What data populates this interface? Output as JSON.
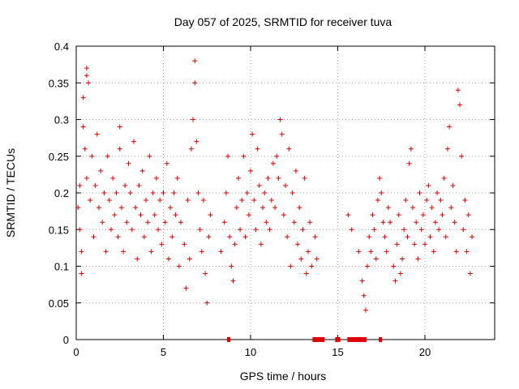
{
  "chart_data": {
    "type": "scatter",
    "title": "Day 057 of 2025, SRMTID for receiver tuva",
    "xlabel": "GPS time / hours",
    "ylabel": "SRMTID / TECUs",
    "xlim": [
      0,
      24
    ],
    "ylim": [
      0,
      0.4
    ],
    "xticks": [
      0,
      5,
      10,
      15,
      20
    ],
    "yticks": [
      0,
      0.05,
      0.1,
      0.15,
      0.2,
      0.25,
      0.3,
      0.35,
      0.4
    ],
    "xtick_labels": [
      "0",
      "5",
      "10",
      "15",
      "20"
    ],
    "ytick_labels": [
      "0",
      "0.05",
      "0.1",
      "0.15",
      "0.2",
      "0.25",
      "0.3",
      "0.35",
      "0.4"
    ],
    "grid": true,
    "marker": "+",
    "color": "#e00000",
    "series": [
      {
        "name": "SRMTID",
        "points": [
          [
            0.1,
            0.18
          ],
          [
            0.2,
            0.15
          ],
          [
            0.2,
            0.21
          ],
          [
            0.3,
            0.12
          ],
          [
            0.3,
            0.09
          ],
          [
            0.4,
            0.29
          ],
          [
            0.4,
            0.33
          ],
          [
            0.5,
            0.26
          ],
          [
            0.6,
            0.36
          ],
          [
            0.6,
            0.37
          ],
          [
            0.7,
            0.35
          ],
          [
            0.6,
            0.22
          ],
          [
            0.8,
            0.19
          ],
          [
            0.9,
            0.25
          ],
          [
            1.0,
            0.14
          ],
          [
            1.1,
            0.21
          ],
          [
            1.2,
            0.28
          ],
          [
            1.3,
            0.18
          ],
          [
            1.4,
            0.23
          ],
          [
            1.5,
            0.16
          ],
          [
            1.6,
            0.2
          ],
          [
            1.7,
            0.12
          ],
          [
            1.8,
            0.25
          ],
          [
            1.9,
            0.19
          ],
          [
            2.0,
            0.15
          ],
          [
            2.1,
            0.22
          ],
          [
            2.2,
            0.17
          ],
          [
            2.3,
            0.2
          ],
          [
            2.4,
            0.14
          ],
          [
            2.5,
            0.26
          ],
          [
            2.5,
            0.29
          ],
          [
            2.6,
            0.18
          ],
          [
            2.7,
            0.12
          ],
          [
            2.8,
            0.21
          ],
          [
            2.9,
            0.16
          ],
          [
            3.0,
            0.24
          ],
          [
            3.1,
            0.2
          ],
          [
            3.2,
            0.15
          ],
          [
            3.3,
            0.27
          ],
          [
            3.4,
            0.18
          ],
          [
            3.5,
            0.11
          ],
          [
            3.6,
            0.21
          ],
          [
            3.7,
            0.17
          ],
          [
            3.8,
            0.23
          ],
          [
            3.9,
            0.14
          ],
          [
            4.0,
            0.19
          ],
          [
            4.1,
            0.16
          ],
          [
            4.2,
            0.25
          ],
          [
            4.3,
            0.12
          ],
          [
            4.4,
            0.2
          ],
          [
            4.5,
            0.17
          ],
          [
            4.6,
            0.22
          ],
          [
            4.7,
            0.15
          ],
          [
            4.8,
            0.19
          ],
          [
            4.9,
            0.13
          ],
          [
            5.0,
            0.2
          ],
          [
            5.1,
            0.16
          ],
          [
            5.2,
            0.24
          ],
          [
            5.3,
            0.11
          ],
          [
            5.4,
            0.18
          ],
          [
            5.5,
            0.14
          ],
          [
            5.6,
            0.2
          ],
          [
            5.7,
            0.17
          ],
          [
            5.8,
            0.22
          ],
          [
            5.9,
            0.1
          ],
          [
            6.0,
            0.16
          ],
          [
            6.2,
            0.13
          ],
          [
            6.3,
            0.07
          ],
          [
            6.4,
            0.19
          ],
          [
            6.5,
            0.11
          ],
          [
            6.6,
            0.26
          ],
          [
            6.7,
            0.3
          ],
          [
            6.8,
            0.38
          ],
          [
            6.8,
            0.35
          ],
          [
            6.9,
            0.27
          ],
          [
            7.0,
            0.2
          ],
          [
            7.1,
            0.15
          ],
          [
            7.2,
            0.12
          ],
          [
            7.3,
            0.19
          ],
          [
            7.4,
            0.09
          ],
          [
            7.5,
            0.05
          ],
          [
            7.6,
            0.14
          ],
          [
            7.7,
            0.17
          ],
          [
            8.3,
            0.12
          ],
          [
            8.5,
            0.16
          ],
          [
            8.6,
            0.2
          ],
          [
            8.7,
            0.25
          ],
          [
            8.8,
            0.14
          ],
          [
            8.9,
            0.1
          ],
          [
            9.0,
            0.08
          ],
          [
            9.1,
            0.13
          ],
          [
            9.2,
            0.18
          ],
          [
            9.3,
            0.22
          ],
          [
            9.4,
            0.15
          ],
          [
            9.5,
            0.19
          ],
          [
            9.6,
            0.25
          ],
          [
            9.7,
            0.14
          ],
          [
            9.8,
            0.2
          ],
          [
            9.9,
            0.17
          ],
          [
            10.0,
            0.23
          ],
          [
            10.1,
            0.28
          ],
          [
            10.2,
            0.19
          ],
          [
            10.3,
            0.15
          ],
          [
            10.4,
            0.26
          ],
          [
            10.5,
            0.21
          ],
          [
            10.6,
            0.13
          ],
          [
            10.7,
            0.18
          ],
          [
            10.8,
            0.2
          ],
          [
            10.9,
            0.16
          ],
          [
            11.0,
            0.22
          ],
          [
            11.1,
            0.15
          ],
          [
            11.2,
            0.19
          ],
          [
            11.3,
            0.24
          ],
          [
            11.4,
            0.18
          ],
          [
            11.5,
            0.25
          ],
          [
            11.6,
            0.22
          ],
          [
            11.7,
            0.3
          ],
          [
            11.8,
            0.28
          ],
          [
            11.9,
            0.17
          ],
          [
            12.0,
            0.21
          ],
          [
            12.1,
            0.14
          ],
          [
            12.2,
            0.26
          ],
          [
            12.3,
            0.1
          ],
          [
            12.4,
            0.2
          ],
          [
            12.5,
            0.16
          ],
          [
            12.6,
            0.23
          ],
          [
            12.7,
            0.13
          ],
          [
            12.8,
            0.18
          ],
          [
            12.9,
            0.11
          ],
          [
            13.0,
            0.15
          ],
          [
            13.1,
            0.22
          ],
          [
            13.2,
            0.09
          ],
          [
            13.3,
            0.12
          ],
          [
            13.4,
            0.16
          ],
          [
            13.5,
            0.1
          ],
          [
            13.7,
            0.14
          ],
          [
            13.8,
            0.11
          ],
          [
            15.6,
            0.17
          ],
          [
            15.8,
            0.15
          ],
          [
            16.2,
            0.12
          ],
          [
            16.4,
            0.08
          ],
          [
            16.5,
            0.06
          ],
          [
            16.6,
            0.04
          ],
          [
            16.7,
            0.1
          ],
          [
            16.8,
            0.14
          ],
          [
            16.9,
            0.12
          ],
          [
            17.0,
            0.17
          ],
          [
            17.1,
            0.15
          ],
          [
            17.2,
            0.11
          ],
          [
            17.3,
            0.19
          ],
          [
            17.4,
            0.22
          ],
          [
            17.5,
            0.2
          ],
          [
            17.6,
            0.16
          ],
          [
            17.7,
            0.14
          ],
          [
            17.8,
            0.12
          ],
          [
            17.9,
            0.18
          ],
          [
            18.0,
            0.16
          ],
          [
            18.2,
            0.1
          ],
          [
            18.3,
            0.08
          ],
          [
            18.4,
            0.13
          ],
          [
            18.5,
            0.17
          ],
          [
            18.6,
            0.09
          ],
          [
            18.7,
            0.11
          ],
          [
            18.8,
            0.15
          ],
          [
            18.9,
            0.19
          ],
          [
            19.0,
            0.14
          ],
          [
            19.1,
            0.24
          ],
          [
            19.2,
            0.26
          ],
          [
            19.3,
            0.18
          ],
          [
            19.4,
            0.13
          ],
          [
            19.5,
            0.16
          ],
          [
            19.6,
            0.11
          ],
          [
            19.7,
            0.2
          ],
          [
            19.8,
            0.15
          ],
          [
            19.9,
            0.17
          ],
          [
            20.0,
            0.13
          ],
          [
            20.1,
            0.19
          ],
          [
            20.2,
            0.21
          ],
          [
            20.3,
            0.14
          ],
          [
            20.4,
            0.18
          ],
          [
            20.5,
            0.12
          ],
          [
            20.6,
            0.16
          ],
          [
            20.7,
            0.2
          ],
          [
            20.8,
            0.15
          ],
          [
            20.9,
            0.19
          ],
          [
            21.0,
            0.17
          ],
          [
            21.1,
            0.22
          ],
          [
            21.2,
            0.14
          ],
          [
            21.3,
            0.26
          ],
          [
            21.4,
            0.29
          ],
          [
            21.5,
            0.18
          ],
          [
            21.6,
            0.21
          ],
          [
            21.7,
            0.16
          ],
          [
            21.8,
            0.12
          ],
          [
            21.9,
            0.34
          ],
          [
            22.0,
            0.32
          ],
          [
            22.1,
            0.25
          ],
          [
            22.2,
            0.15
          ],
          [
            22.3,
            0.19
          ],
          [
            22.4,
            0.12
          ],
          [
            22.5,
            0.17
          ],
          [
            22.6,
            0.09
          ],
          [
            22.7,
            0.14
          ]
        ],
        "zero_spans": [
          [
            8.7,
            8.8
          ],
          [
            13.6,
            14.2
          ],
          [
            14.9,
            15.1
          ],
          [
            15.6,
            16.6
          ],
          [
            17.4,
            17.5
          ]
        ]
      }
    ]
  }
}
